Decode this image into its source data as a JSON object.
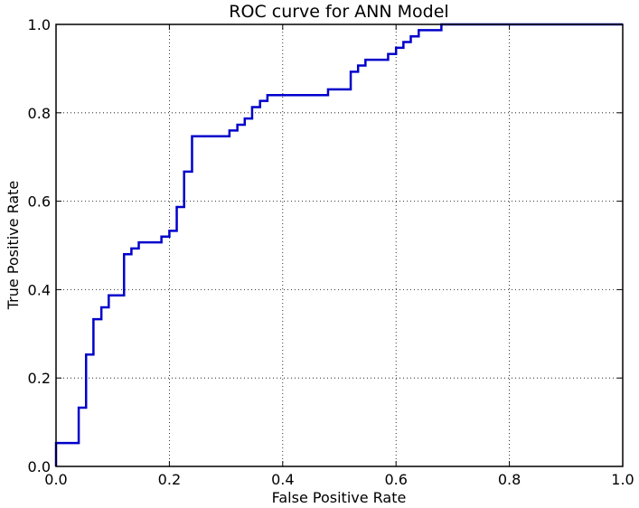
{
  "chart_data": {
    "type": "line",
    "title": "ROC curve for ANN Model",
    "xlabel": "False Positive Rate",
    "ylabel": "True Positive Rate",
    "xlim": [
      0.0,
      1.0
    ],
    "ylim": [
      0.0,
      1.0
    ],
    "x_ticks": [
      "0.0",
      "0.2",
      "0.4",
      "0.6",
      "0.8",
      "1.0"
    ],
    "y_ticks": [
      "0.0",
      "0.2",
      "0.4",
      "0.6",
      "0.8",
      "1.0"
    ],
    "grid": true,
    "legend": "none",
    "line_color": "#0000cc",
    "series": [
      {
        "x": [
          0.0,
          0.0,
          0.04,
          0.04,
          0.053,
          0.053,
          0.066,
          0.066,
          0.08,
          0.08,
          0.093,
          0.093,
          0.12,
          0.12,
          0.133,
          0.133,
          0.146,
          0.146,
          0.186,
          0.186,
          0.2,
          0.2,
          0.213,
          0.213,
          0.226,
          0.226,
          0.24,
          0.24,
          0.306,
          0.306,
          0.32,
          0.32,
          0.333,
          0.333,
          0.346,
          0.346,
          0.36,
          0.36,
          0.373,
          0.373,
          0.48,
          0.48,
          0.52,
          0.52,
          0.533,
          0.533,
          0.546,
          0.546,
          0.586,
          0.586,
          0.6,
          0.6,
          0.613,
          0.613,
          0.626,
          0.626,
          0.64,
          0.64,
          0.68,
          0.68,
          1.0
        ],
        "y": [
          0.0,
          0.053,
          0.053,
          0.133,
          0.133,
          0.253,
          0.253,
          0.333,
          0.333,
          0.36,
          0.36,
          0.387,
          0.387,
          0.48,
          0.48,
          0.493,
          0.493,
          0.507,
          0.507,
          0.52,
          0.52,
          0.533,
          0.533,
          0.587,
          0.587,
          0.667,
          0.667,
          0.747,
          0.747,
          0.76,
          0.76,
          0.773,
          0.773,
          0.787,
          0.787,
          0.813,
          0.813,
          0.827,
          0.827,
          0.84,
          0.84,
          0.853,
          0.853,
          0.893,
          0.893,
          0.907,
          0.907,
          0.92,
          0.92,
          0.933,
          0.933,
          0.947,
          0.947,
          0.96,
          0.96,
          0.973,
          0.973,
          0.987,
          0.987,
          1.0,
          1.0
        ]
      }
    ]
  }
}
